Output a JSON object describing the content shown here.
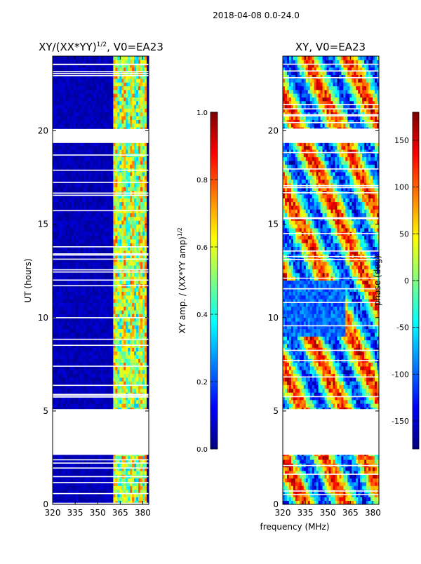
{
  "colors": {
    "jet": [
      "#00007f",
      "#0000ff",
      "#007fff",
      "#00ffff",
      "#7fff7f",
      "#ffff00",
      "#ff7f00",
      "#ff0000",
      "#7f0000"
    ]
  },
  "figure": {
    "suptitle": "2018-04-08 0.0-24.0",
    "xlabel": "frequency (MHz)"
  },
  "chart_data": [
    {
      "type": "heatmap",
      "title_main": "XY/(XX*YY)",
      "title_exp": "1/2",
      "title_tail": ", V0=EA23",
      "xlabel": "",
      "ylabel": "UT (hours)",
      "xlim": [
        320,
        384
      ],
      "ylim": [
        0,
        24
      ],
      "xticks": [
        320,
        335,
        350,
        365,
        380
      ],
      "yticks": [
        0,
        5,
        10,
        15,
        20
      ],
      "rfi_band_mhz": [
        361,
        383
      ],
      "gaps_hours": [
        [
          2.65,
          5.1
        ],
        [
          19.35,
          20.1
        ]
      ],
      "colorbar": {
        "label_main": "XY amp. / (XX*YY amp)",
        "label_exp": "1/2",
        "range": [
          0.0,
          1.0
        ],
        "ticks": [
          "0.0",
          "0.2",
          "0.4",
          "0.6",
          "0.8",
          "1.0"
        ]
      }
    },
    {
      "type": "heatmap",
      "title": "XY, V0=EA23",
      "xlabel": "",
      "ylabel": "",
      "xlim": [
        320,
        384
      ],
      "ylim": [
        0,
        24
      ],
      "xticks": [
        320,
        335,
        350,
        365,
        380
      ],
      "yticks": [
        0,
        5,
        10,
        15,
        20
      ],
      "gaps_hours": [
        [
          2.65,
          5.1
        ],
        [
          19.35,
          20.1
        ]
      ],
      "colorbar": {
        "label": "phase (deg)",
        "range": [
          -180,
          180
        ],
        "ticks": [
          "-150",
          "-100",
          "-50",
          "0",
          "50",
          "100",
          "150"
        ]
      }
    }
  ]
}
